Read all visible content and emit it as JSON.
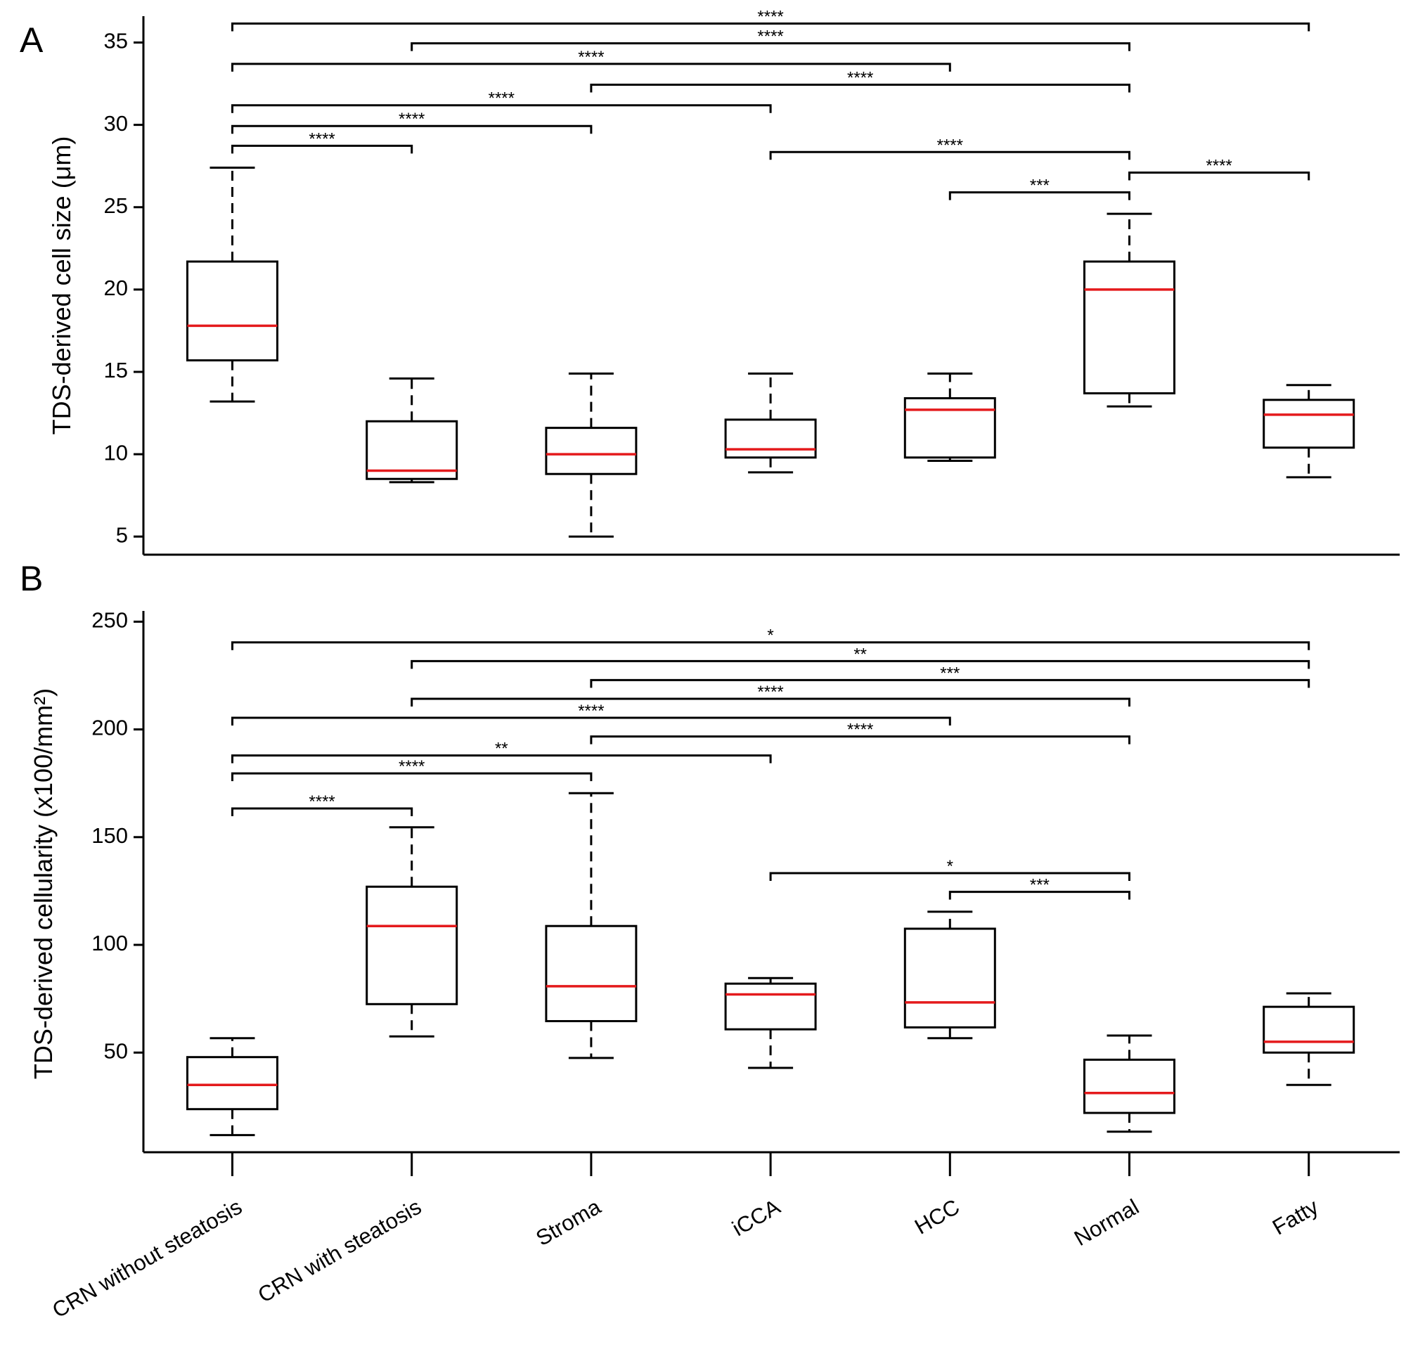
{
  "chart_data": [
    {
      "type": "box",
      "panel": "A",
      "y_label": "TDS-derived cell size (μm)",
      "ylim": [
        3.9,
        36.6
      ],
      "yticks": [
        5,
        10,
        15,
        20,
        25,
        30,
        35
      ],
      "box_color": "#000000",
      "median_color": "#e41a1c",
      "boxes": [
        {
          "low": 13.2,
          "q1": 15.7,
          "median": 17.8,
          "q3": 21.7,
          "high": 27.4
        },
        {
          "low": 8.3,
          "q1": 8.5,
          "median": 9.0,
          "q3": 12.0,
          "high": 14.6
        },
        {
          "low": 5.0,
          "q1": 8.8,
          "median": 10.0,
          "q3": 11.6,
          "high": 14.9
        },
        {
          "low": 8.9,
          "q1": 9.8,
          "median": 10.3,
          "q3": 12.1,
          "high": 14.9
        },
        {
          "low": 9.6,
          "q1": 9.8,
          "median": 12.7,
          "q3": 13.4,
          "high": 14.9
        },
        {
          "low": 12.9,
          "q1": 13.7,
          "median": 20.0,
          "q3": 21.7,
          "high": 24.6
        },
        {
          "low": 8.6,
          "q1": 10.4,
          "median": 12.4,
          "q3": 13.3,
          "high": 14.2
        }
      ],
      "brackets": [
        {
          "pair": [
            0,
            6
          ],
          "y": 36.15,
          "label": "****"
        },
        {
          "pair": [
            1,
            5
          ],
          "y": 34.95,
          "label": "****"
        },
        {
          "pair": [
            0,
            4
          ],
          "y": 33.7,
          "label": "****"
        },
        {
          "pair": [
            2,
            5
          ],
          "y": 32.44,
          "label": "****"
        },
        {
          "pair": [
            0,
            3
          ],
          "y": 31.19,
          "label": "****"
        },
        {
          "pair": [
            0,
            2
          ],
          "y": 29.93,
          "label": "****"
        },
        {
          "pair": [
            0,
            1
          ],
          "y": 28.73,
          "label": "****"
        },
        {
          "pair": [
            3,
            5
          ],
          "y": 28.35,
          "label": "****"
        },
        {
          "pair": [
            5,
            6
          ],
          "y": 27.1,
          "label": "****"
        },
        {
          "pair": [
            4,
            5
          ],
          "y": 25.9,
          "label": "***"
        }
      ]
    },
    {
      "type": "box",
      "panel": "B",
      "y_label": "TDS-derived cellularity (x100/mm²)",
      "ylim": [
        3.75,
        255
      ],
      "yticks": [
        50,
        100,
        150,
        200,
        250
      ],
      "box_color": "#000000",
      "median_color": "#e41a1c",
      "categories": [
        "CRN without steatosis",
        "CRN with steatosis",
        "Stroma",
        "iCCA",
        "HCC",
        "Normal",
        "Fatty"
      ],
      "boxes": [
        {
          "low": 11.7,
          "q1": 23.75,
          "median": 35,
          "q3": 47.9,
          "high": 56.7
        },
        {
          "low": 57.5,
          "q1": 72.5,
          "median": 108.75,
          "q3": 127,
          "high": 154.6
        },
        {
          "low": 47.5,
          "q1": 64.6,
          "median": 80.8,
          "q3": 108.75,
          "high": 170.4
        },
        {
          "low": 42.9,
          "q1": 60.8,
          "median": 77,
          "q3": 82,
          "high": 84.6
        },
        {
          "low": 56.7,
          "q1": 61.7,
          "median": 73.3,
          "q3": 107.5,
          "high": 115.4
        },
        {
          "low": 13.3,
          "q1": 22,
          "median": 31.25,
          "q3": 46.7,
          "high": 57.9
        },
        {
          "low": 35,
          "q1": 50,
          "median": 55,
          "q3": 71.25,
          "high": 77.5
        }
      ],
      "brackets": [
        {
          "pair": [
            0,
            6
          ],
          "y": 240.4,
          "label": "*"
        },
        {
          "pair": [
            1,
            6
          ],
          "y": 231.7,
          "label": "**"
        },
        {
          "pair": [
            2,
            6
          ],
          "y": 222.9,
          "label": "***"
        },
        {
          "pair": [
            1,
            5
          ],
          "y": 214.2,
          "label": "****"
        },
        {
          "pair": [
            0,
            4
          ],
          "y": 205.4,
          "label": "****"
        },
        {
          "pair": [
            2,
            5
          ],
          "y": 196.7,
          "label": "****"
        },
        {
          "pair": [
            0,
            3
          ],
          "y": 187.9,
          "label": "**"
        },
        {
          "pair": [
            0,
            2
          ],
          "y": 179.6,
          "label": "****"
        },
        {
          "pair": [
            0,
            1
          ],
          "y": 163.3,
          "label": "****"
        },
        {
          "pair": [
            3,
            5
          ],
          "y": 133.3,
          "label": "*"
        },
        {
          "pair": [
            4,
            5
          ],
          "y": 124.6,
          "label": "***"
        }
      ]
    }
  ]
}
